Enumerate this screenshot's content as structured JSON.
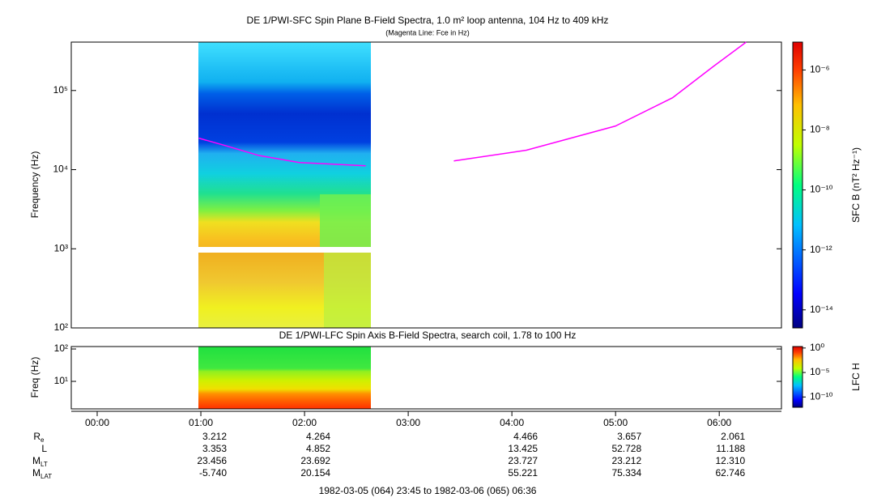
{
  "title": "DE 1/PWI-SFC  Spin Plane B-Field Spectra, 1.0 m² loop antenna, 104 Hz to 409 kHz",
  "subtitle": "(Magenta Line: Fce in Hz)",
  "x_axis": {
    "xlim": [
      -0.25,
      6.6
    ],
    "xticks": [
      {
        "value": 0,
        "label": "00:00"
      },
      {
        "value": 1,
        "label": "01:00"
      },
      {
        "value": 2,
        "label": "02:00"
      },
      {
        "value": 3,
        "label": "03:00"
      },
      {
        "value": 4,
        "label": "04:00"
      },
      {
        "value": 5,
        "label": "05:00"
      },
      {
        "value": 6,
        "label": "06:00"
      }
    ]
  },
  "chart_data": [
    {
      "type": "spectrogram",
      "y_label": "Frequency (Hz)",
      "log_y": true,
      "ylim": [
        100,
        409000
      ],
      "yticks": [
        {
          "value": 100,
          "label": "10²"
        },
        {
          "value": 1000,
          "label": "10³"
        },
        {
          "value": 10000,
          "label": "10⁴"
        },
        {
          "value": 100000,
          "label": "10⁵"
        }
      ],
      "colorbar_label": "SFC B (nT² Hz⁻¹)",
      "zlim": [
        2.5e-15,
        8.5e-06
      ],
      "zticks": [
        {
          "value": 1e-06,
          "label": "10⁻⁶"
        },
        {
          "value": 1e-08,
          "label": "10⁻⁸"
        },
        {
          "value": 1e-10,
          "label": "10⁻¹⁰"
        },
        {
          "value": 1e-12,
          "label": "10⁻¹²"
        },
        {
          "value": 1e-14,
          "label": "10⁻¹⁴"
        }
      ],
      "series": [
        {
          "color": "#ff00ff",
          "x": [
            0.98,
            1.25,
            1.56,
            1.95,
            2.59,
            3.0,
            3.44,
            4.14,
            5.0,
            5.55,
            5.94,
            6.26
          ],
          "values": [
            25000,
            19900,
            15100,
            12300,
            11200,
            null,
            12900,
            17600,
            35600,
            81000,
            200000,
            409000
          ]
        }
      ]
    },
    {
      "type": "spectrogram",
      "title": "DE 1/PWI-LFC  Spin Axis B-Field Spectra, search coil, 1.78 to 100 Hz",
      "y_label": "Freq (Hz)",
      "log_y": true,
      "ylim": [
        1.41,
        119
      ],
      "yticks": [
        {
          "value": 10,
          "label": "10¹"
        },
        {
          "value": 100,
          "label": "10²"
        }
      ],
      "colorbar_label": "LFC H",
      "zlim": [
        7.9e-13,
        2
      ],
      "zticks": [
        {
          "value": 1,
          "label": "10⁰"
        },
        {
          "value": 1e-05,
          "label": "10⁻⁵"
        },
        {
          "value": 1e-10,
          "label": "10⁻¹⁰"
        }
      ]
    }
  ],
  "ephemeris": {
    "rows": [
      {
        "name": "R",
        "sub": "e",
        "values": [
          null,
          "3.212",
          "4.264",
          null,
          "4.466",
          "3.657",
          "2.061"
        ]
      },
      {
        "name": "L",
        "values": [
          null,
          "3.353",
          "4.852",
          null,
          "13.425",
          "52.728",
          "11.188"
        ]
      },
      {
        "name": "M",
        "sub": "LT",
        "values": [
          null,
          "23.456",
          "23.692",
          null,
          "23.727",
          "23.212",
          "12.310"
        ]
      },
      {
        "name": "M",
        "sub": "LAT",
        "values": [
          null,
          "-5.740",
          "20.154",
          null,
          "55.221",
          "75.334",
          "62.746"
        ]
      }
    ]
  },
  "footer": "1982-03-05 (064) 23:45 to 1982-03-06 (065) 06:36"
}
